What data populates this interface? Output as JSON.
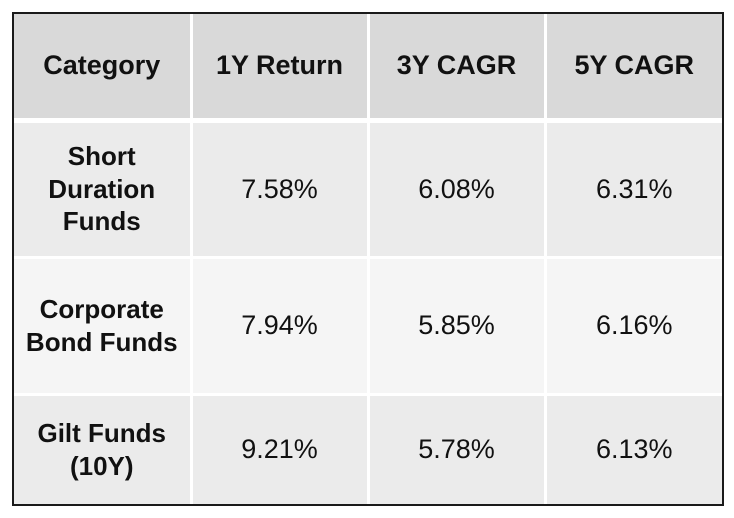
{
  "table": {
    "headers": [
      "Category",
      "1Y Return",
      "3Y CAGR",
      "5Y CAGR"
    ],
    "rows": [
      {
        "category_lines": [
          "Short",
          "Duration",
          "Funds"
        ],
        "cells": [
          "7.58%",
          "6.08%",
          "6.31%"
        ]
      },
      {
        "category_lines": [
          "Corporate",
          "Bond Funds"
        ],
        "cells": [
          "7.94%",
          "5.85%",
          "6.16%"
        ]
      },
      {
        "category_lines": [
          "Gilt Funds",
          "(10Y)"
        ],
        "cells": [
          "9.21%",
          "5.78%",
          "6.13%"
        ]
      }
    ]
  },
  "colors": {
    "header_bg": "#d9d9d9",
    "row_odd_bg": "#ebebeb",
    "row_even_bg": "#f5f5f5",
    "border": "#1a1a1a"
  }
}
